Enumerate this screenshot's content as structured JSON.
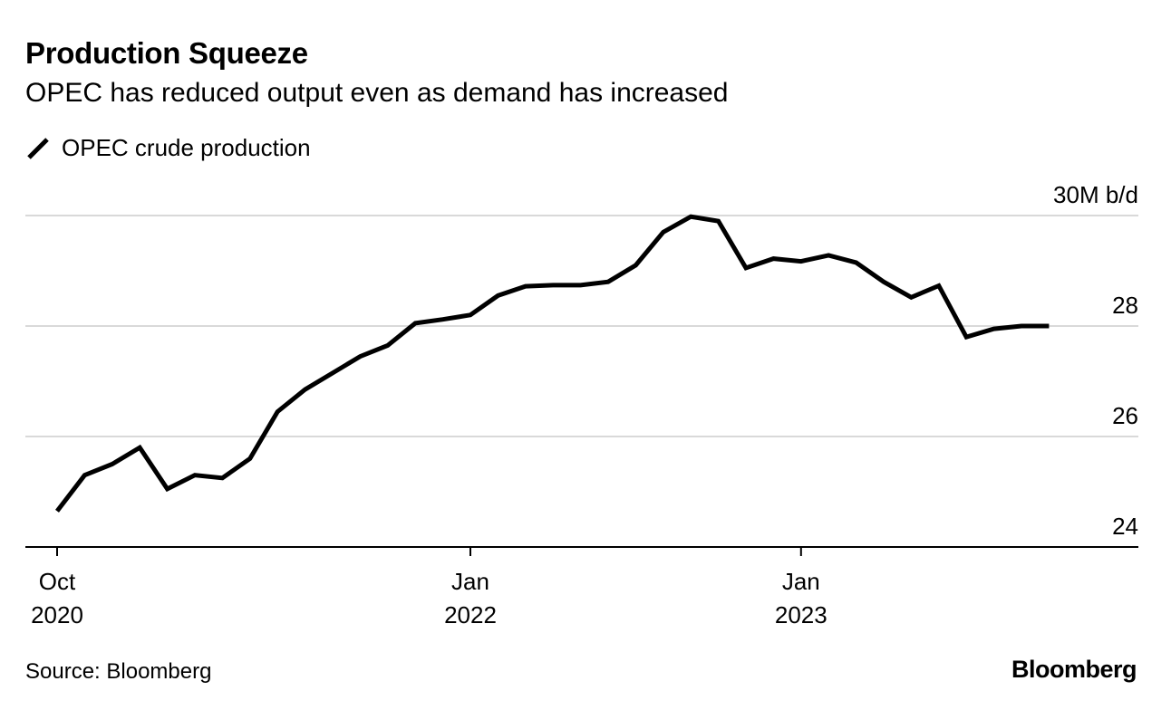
{
  "header": {
    "title": "Production Squeeze",
    "subtitle": "OPEC has reduced output even as demand has increased"
  },
  "legend": {
    "label": "OPEC crude production",
    "icon": "line-swatch-icon"
  },
  "footer": {
    "source": "Source: Bloomberg",
    "brand": "Bloomberg"
  },
  "colors": {
    "line": "#000000",
    "grid": "#d9d9d9",
    "axis": "#000000"
  },
  "chart_data": {
    "type": "line",
    "title": "Production Squeeze",
    "subtitle": "OPEC has reduced output even as demand has increased",
    "xlabel": "",
    "ylabel": "",
    "ylim": [
      24,
      30
    ],
    "y_unit_label": "30M b/d",
    "y_ticks": [
      {
        "value": 30,
        "label": "30M b/d"
      },
      {
        "value": 28,
        "label": "28"
      },
      {
        "value": 26,
        "label": "26"
      },
      {
        "value": 24,
        "label": "24"
      }
    ],
    "x_ticks": [
      {
        "month_index": 0,
        "line1": "Oct",
        "line2": "2020"
      },
      {
        "month_index": 15,
        "line1": "Jan",
        "line2": "2022"
      },
      {
        "month_index": 27,
        "line1": "Jan",
        "line2": "2023"
      }
    ],
    "grid": true,
    "legend_position": "top-left",
    "series": [
      {
        "name": "OPEC crude production",
        "start": "2020-10",
        "values": [
          24.65,
          25.3,
          25.5,
          25.8,
          25.05,
          25.3,
          25.25,
          25.6,
          26.45,
          26.85,
          27.15,
          27.45,
          27.65,
          28.05,
          28.12,
          28.2,
          28.55,
          28.72,
          28.74,
          28.74,
          28.8,
          29.1,
          29.7,
          29.98,
          29.9,
          29.05,
          29.22,
          29.17,
          29.28,
          29.15,
          28.8,
          28.52,
          28.73,
          27.8,
          27.95,
          28.0,
          28.0
        ]
      }
    ]
  }
}
